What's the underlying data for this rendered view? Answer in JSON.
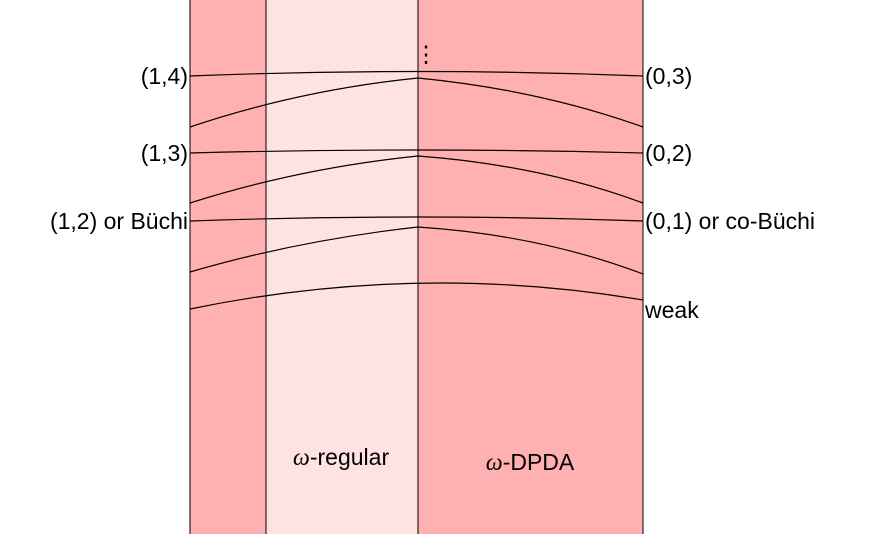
{
  "colors": {
    "outer_band": "#ffb0b0",
    "regular_band": "#ffe2e2",
    "dpda_band": "#ffb0b0",
    "lines": "#000000"
  },
  "left_labels": [
    "(1,4)",
    "(1,3)",
    "(1,2) or Büchi"
  ],
  "right_labels": [
    "(0,3)",
    "(0,2)",
    "(0,1) or co-Büchi",
    "weak"
  ],
  "regions": {
    "regular": {
      "symbol": "ω",
      "text": "-regular"
    },
    "dpda": {
      "symbol": "ω",
      "text": "-DPDA"
    }
  },
  "continuation": "⋮"
}
